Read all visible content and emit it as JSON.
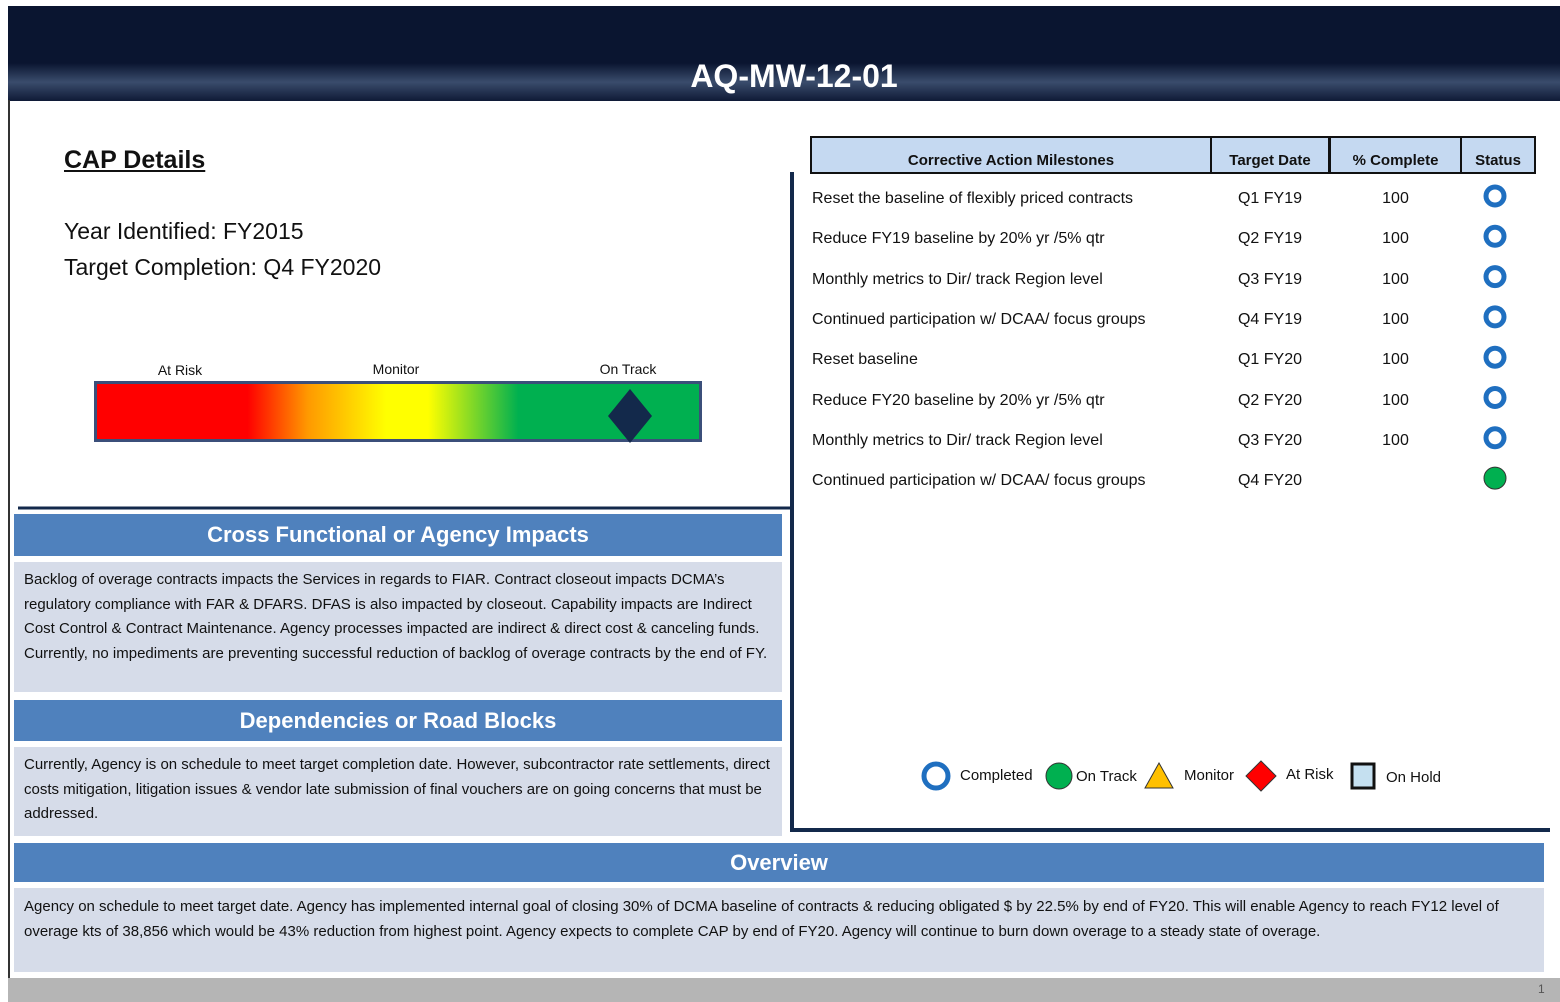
{
  "header": {
    "title": "AQ-MW-12-01"
  },
  "cap": {
    "heading": "CAP Details",
    "year": "Year Identified: FY2015",
    "target": "Target Completion:  Q4 FY2020",
    "gauge": [
      "At Risk",
      "Monitor",
      "On Track"
    ]
  },
  "table": {
    "headers": [
      "Corrective Action Milestones",
      "Target Date",
      "% Complete",
      "Status"
    ],
    "rows": [
      [
        "Reset the baseline of flexibly priced contracts",
        "Q1 FY19",
        100,
        "Completed"
      ],
      [
        "Reduce FY19 baseline by 20% yr /5% qtr",
        "Q2 FY19",
        100,
        "Completed"
      ],
      [
        "Monthly metrics to Dir/ track Region level",
        "Q3 FY19",
        100,
        "Completed"
      ],
      [
        "Continued participation w/ DCAA/ focus groups",
        "Q4 FY19",
        100,
        "Completed"
      ],
      [
        "Reset baseline",
        "Q1 FY20",
        100,
        "Completed"
      ],
      [
        "Reduce FY20 baseline by 20% yr /5% qtr",
        "Q2 FY20",
        100,
        "Completed"
      ],
      [
        "Monthly metrics to Dir/ track Region level",
        "Q3 FY20",
        100,
        "Completed"
      ],
      [
        "Continued participation w/ DCAA/ focus groups",
        "Q4 FY20",
        null,
        "On Track"
      ]
    ]
  },
  "legend": [
    "Completed",
    "On Track",
    "Monitor",
    "At Risk",
    "On Hold"
  ],
  "impacts": {
    "title": "Cross Functional or Agency Impacts",
    "text": "Backlog of overage contracts impacts the Services in regards to FIAR. Contract closeout impacts DCMA’s regulatory compliance with FAR & DFARS. DFAS is also impacted by closeout. Capability impacts are Indirect Cost Control & Contract Maintenance.  Agency processes impacted are indirect & direct cost & canceling funds. Currently, no impediments are preventing successful reduction of backlog of overage contracts by the end of FY."
  },
  "dependencies": {
    "title": "Dependencies or Road Blocks",
    "text": "Currently, Agency is on schedule to meet target completion date. However, subcontractor rate settlements, direct costs mitigation, litigation issues & vendor late submission of final vouchers are on going concerns that must be addressed."
  },
  "overview": {
    "title": "Overview",
    "text": "Agency on schedule to meet target date.  Agency has implemented internal goal of closing 30% of DCMA baseline of contracts & reducing obligated $ by 22.5% by end of FY20.  This will enable Agency to reach FY12 level of overage kts of 38,856 which would be 43% reduction from highest point.  Agency expects to complete CAP by end of FY20. Agency will continue to burn down overage to a steady state of overage."
  },
  "page": "1"
}
